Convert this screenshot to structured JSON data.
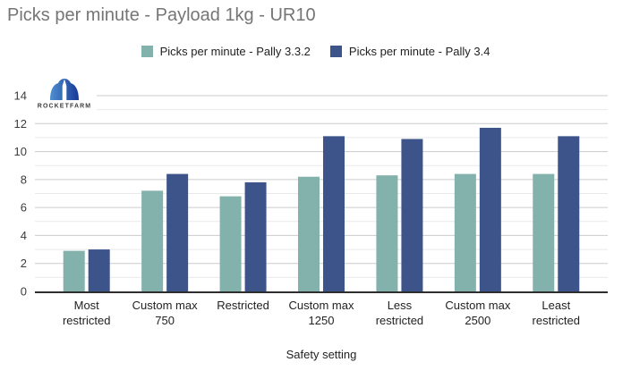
{
  "chart_data": {
    "type": "bar",
    "title": "Picks per minute - Payload 1kg - UR10",
    "xlabel": "Safety setting",
    "ylabel": "",
    "ylim": [
      0,
      14
    ],
    "ytick_step": 2,
    "yticks": [
      "0",
      "2",
      "4",
      "6",
      "8",
      "10",
      "12",
      "14"
    ],
    "grid": "on",
    "minor_gridlines": true,
    "legend_position": "top-center",
    "categories": [
      "Most restricted",
      "Custom max 750",
      "Restricted",
      "Custom max 1250",
      "Less restricted",
      "Custom max 2500",
      "Least restricted"
    ],
    "category_lines": [
      [
        "Most",
        "restricted"
      ],
      [
        "Custom max",
        "750"
      ],
      [
        "Restricted"
      ],
      [
        "Custom max",
        "1250"
      ],
      [
        "Less",
        "restricted"
      ],
      [
        "Custom max",
        "2500"
      ],
      [
        "Least",
        "restricted"
      ]
    ],
    "series": [
      {
        "name": "Picks per minute - Pally 3.3.2",
        "color": "#83b1ac",
        "values": [
          2.9,
          7.2,
          6.8,
          8.2,
          8.3,
          8.4,
          8.4
        ]
      },
      {
        "name": "Picks per minute - Pally 3.4",
        "color": "#3d548b",
        "values": [
          3.0,
          8.4,
          7.8,
          11.1,
          10.9,
          11.7,
          11.1
        ]
      }
    ]
  },
  "logo": {
    "text": "ROCKETFARM"
  },
  "colors": {
    "title_text": "#757575",
    "axis_text": "#222222",
    "tick_text": "#3c3c3c",
    "grid_major": "#cccccc",
    "grid_minor": "#e9e9e9",
    "axis_line": "#2e2e2e",
    "series_teal": "#83b1ac",
    "series_blue": "#3d548b",
    "logo_blue_light": "#4f8fd0",
    "logo_blue_dark": "#173a97"
  }
}
